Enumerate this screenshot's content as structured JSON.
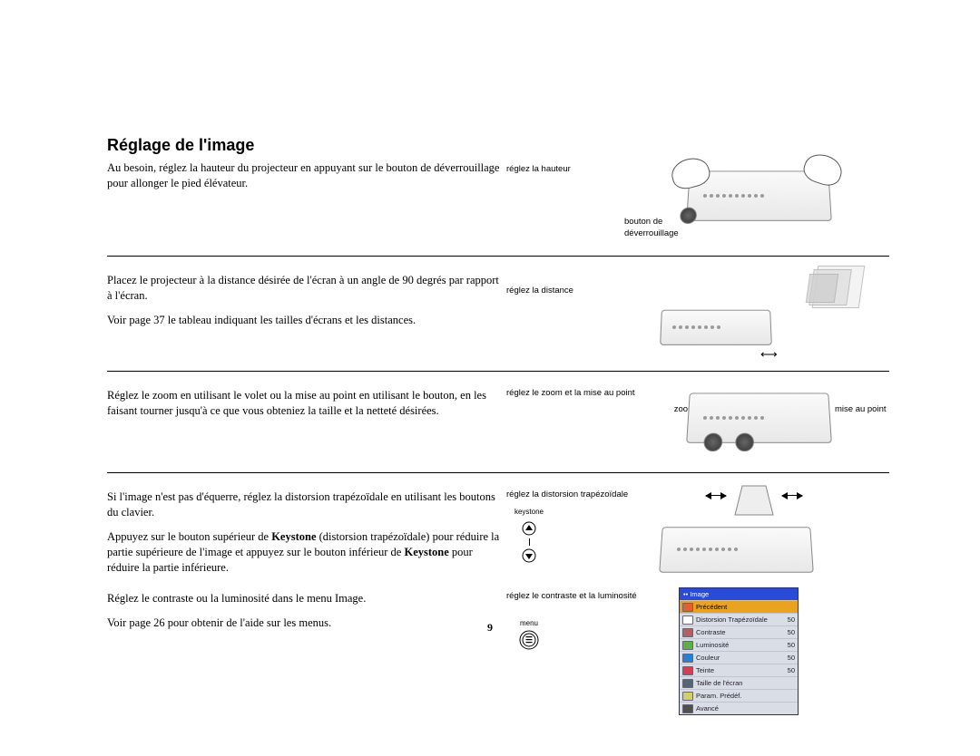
{
  "title": "Réglage de l'image",
  "page_number": "9",
  "sections": [
    {
      "body_lines": [
        "Au besoin, réglez la hauteur du projecteur en appuyant sur le bouton de déverrouillage pour allonger le pied élévateur."
      ],
      "caption1": "réglez la hauteur",
      "caption2": "bouton de déverrouillage"
    },
    {
      "body_lines": [
        "Placez le projecteur à la distance désirée de l'écran à un angle de 90 degrés par rapport à l'écran.",
        "Voir page 37 le tableau indiquant les tailles d'écrans et les distances."
      ],
      "caption1": "réglez la distance"
    },
    {
      "body_lines": [
        "Réglez le zoom en utilisant le volet ou la mise au point en utilisant le bouton, en les faisant tourner jusqu'à ce que vous obteniez la taille et la netteté désirées."
      ],
      "caption1": "réglez le zoom et la mise au point",
      "zoom_label": "zoom",
      "focus_label": "mise au point"
    },
    {
      "body_html": "Si l'image n'est pas d'équerre, réglez la distorsion trapézoïdale en utilisant les boutons du clavier.",
      "body2_pre": "Appuyez sur le bouton supérieur de ",
      "kw1": "Keystone",
      "body2_mid": " (distorsion trapézoïdale) pour réduire la partie supérieure de l'image et appuyez sur le bouton inférieur de ",
      "kw2": "Keystone",
      "body2_post": " pour réduire la partie inférieure.",
      "caption1": "réglez la distorsion trapézoïdale",
      "keystone_label": "keystone"
    },
    {
      "body_lines": [
        "Réglez le contraste ou la luminosité dans le menu Image.",
        "Voir page 26 pour obtenir de l'aide sur les menus."
      ],
      "caption1": "réglez le contraste et la luminosité",
      "menu_label": "menu"
    }
  ],
  "osd": {
    "header": "•• Image",
    "rows": [
      {
        "icon_color": "#e06030",
        "label": "Précédent",
        "value": "",
        "active": true
      },
      {
        "icon_color": "#ffffff",
        "label": "Distorsion Trapézoïdale",
        "value": "50",
        "active": false
      },
      {
        "icon_color": "#b06060",
        "label": "Contraste",
        "value": "50",
        "active": false
      },
      {
        "icon_color": "#5fae4a",
        "label": "Luminosité",
        "value": "50",
        "active": false
      },
      {
        "icon_color": "#2a80d0",
        "label": "Couleur",
        "value": "50",
        "active": false
      },
      {
        "icon_color": "#d04050",
        "label": "Teinte",
        "value": "50",
        "active": false
      },
      {
        "icon_color": "#556677",
        "label": "Taille de l'écran",
        "value": "",
        "active": false
      },
      {
        "icon_color": "#cfcf70",
        "label": "Param. Prédéf.",
        "value": "",
        "active": false
      },
      {
        "icon_color": "#505050",
        "label": "Avancé",
        "value": "",
        "active": false
      }
    ]
  },
  "colors": {
    "osd_header_bg": "#2a4bd7",
    "osd_row_bg": "#d9dde6",
    "osd_active_bg": "#eaa321"
  }
}
